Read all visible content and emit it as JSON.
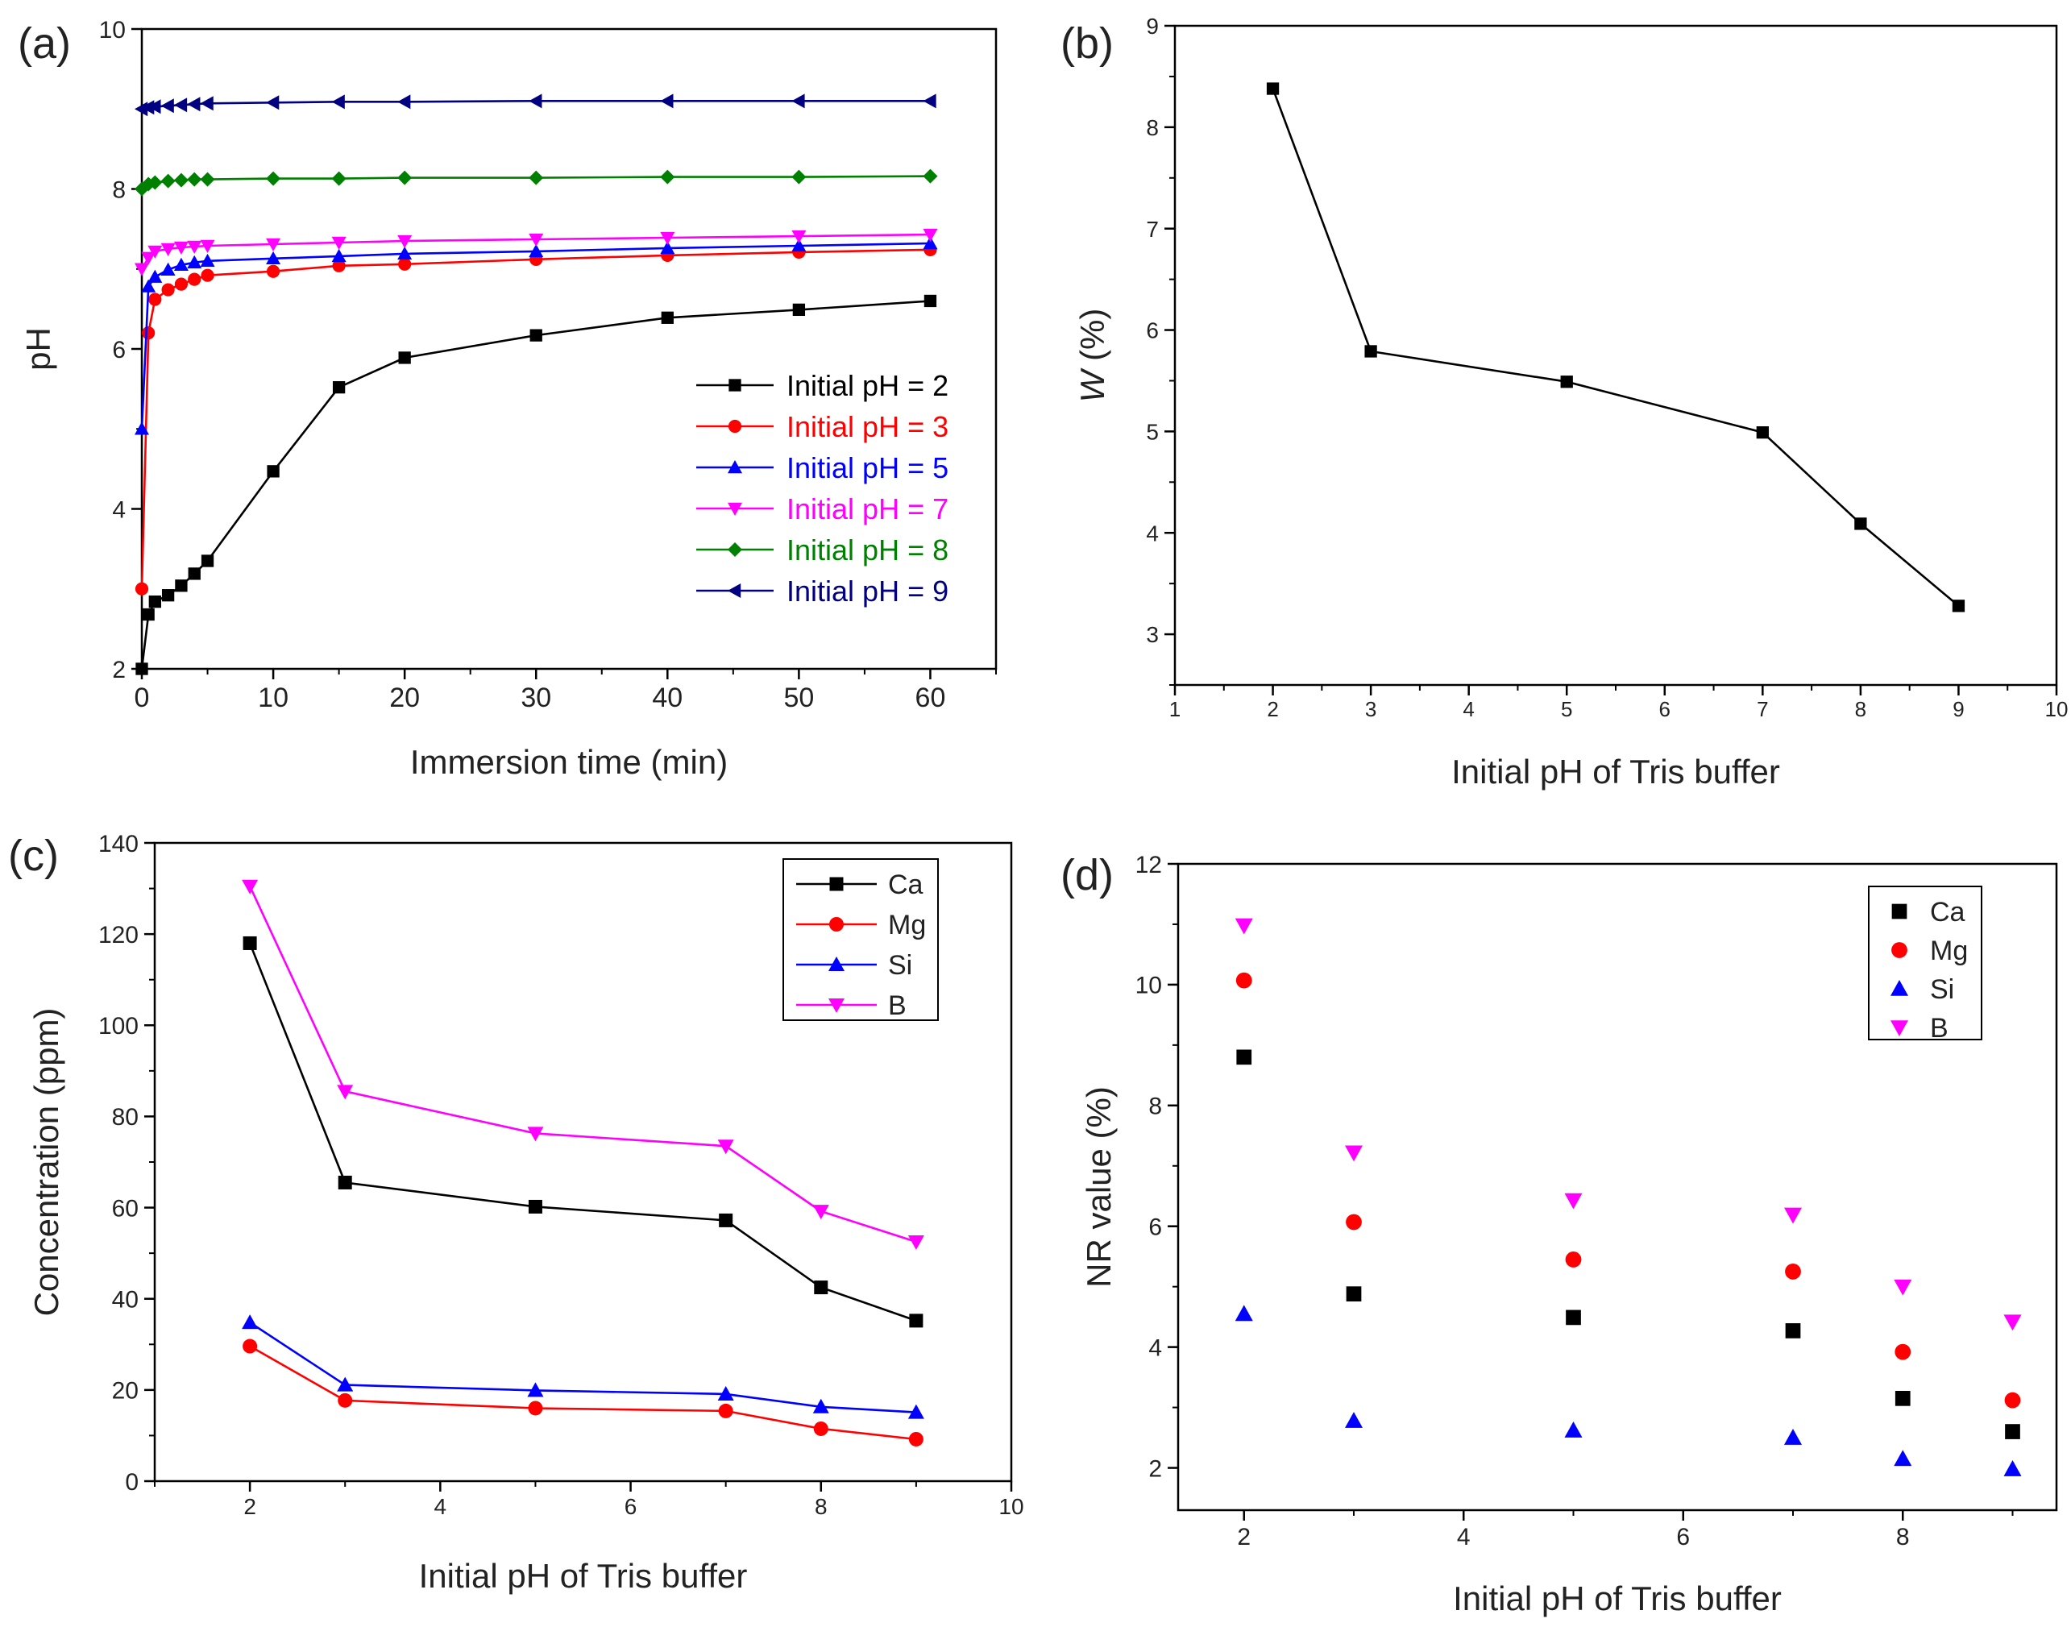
{
  "chart_data": [
    {
      "type": "line",
      "panel_label": "(a)",
      "xlabel": "Immersion time (min)",
      "ylabel": "pH",
      "xlim": [
        0,
        65
      ],
      "ylim": [
        2,
        10
      ],
      "xticks": [
        0,
        10,
        20,
        30,
        40,
        50,
        60
      ],
      "yticks": [
        2,
        4,
        6,
        8,
        10
      ],
      "legend_position": "right-center",
      "series": [
        {
          "name": "Initial pH = 2",
          "color": "#000000",
          "marker": "square",
          "x": [
            0,
            0.5,
            1,
            2,
            3,
            4,
            5,
            10,
            15,
            20,
            30,
            40,
            50,
            60
          ],
          "y": [
            2.0,
            2.68,
            2.84,
            2.92,
            3.04,
            3.19,
            3.35,
            4.47,
            5.52,
            5.89,
            6.17,
            6.39,
            6.49,
            6.6
          ]
        },
        {
          "name": "Initial pH = 3",
          "color": "#ff0000",
          "marker": "circle",
          "x": [
            0,
            0.5,
            1,
            2,
            3,
            4,
            5,
            10,
            15,
            20,
            30,
            40,
            50,
            60
          ],
          "y": [
            3.0,
            6.2,
            6.62,
            6.74,
            6.81,
            6.87,
            6.92,
            6.97,
            7.04,
            7.06,
            7.12,
            7.17,
            7.21,
            7.24
          ]
        },
        {
          "name": "Initial pH = 5",
          "color": "#0000ff",
          "marker": "triangle-up",
          "x": [
            0,
            0.5,
            1,
            2,
            3,
            4,
            5,
            10,
            15,
            20,
            30,
            40,
            50,
            60
          ],
          "y": [
            5.0,
            6.78,
            6.9,
            6.99,
            7.05,
            7.08,
            7.1,
            7.13,
            7.16,
            7.19,
            7.22,
            7.26,
            7.29,
            7.32
          ]
        },
        {
          "name": "Initial pH = 7",
          "color": "#ff00ff",
          "marker": "triangle-down",
          "x": [
            0,
            0.5,
            1,
            2,
            3,
            4,
            5,
            10,
            15,
            20,
            30,
            40,
            50,
            60
          ],
          "y": [
            7.0,
            7.14,
            7.22,
            7.25,
            7.27,
            7.28,
            7.29,
            7.31,
            7.33,
            7.35,
            7.37,
            7.39,
            7.41,
            7.43
          ]
        },
        {
          "name": "Initial pH = 8",
          "color": "#008000",
          "marker": "diamond",
          "x": [
            0,
            0.5,
            1,
            2,
            3,
            4,
            5,
            10,
            15,
            20,
            30,
            40,
            50,
            60
          ],
          "y": [
            8.0,
            8.06,
            8.08,
            8.1,
            8.11,
            8.12,
            8.12,
            8.13,
            8.13,
            8.14,
            8.14,
            8.15,
            8.15,
            8.16
          ]
        },
        {
          "name": "Initial pH = 9",
          "color": "#000080",
          "marker": "triangle-left",
          "x": [
            0,
            0.5,
            1,
            2,
            3,
            4,
            5,
            10,
            15,
            20,
            30,
            40,
            50,
            60
          ],
          "y": [
            9.0,
            9.02,
            9.03,
            9.04,
            9.05,
            9.06,
            9.07,
            9.08,
            9.09,
            9.09,
            9.1,
            9.1,
            9.1,
            9.1
          ]
        }
      ]
    },
    {
      "type": "line",
      "panel_label": "(b)",
      "xlabel": "Initial pH of Tris buffer",
      "ylabel_italic": "W",
      "ylabel_rest": " (%)",
      "xlim": [
        1,
        10
      ],
      "ylim": [
        2.5,
        9
      ],
      "xticks": [
        1,
        2,
        3,
        4,
        5,
        6,
        7,
        8,
        9,
        10
      ],
      "yticks": [
        3,
        4,
        5,
        6,
        7,
        8,
        9
      ],
      "series": [
        {
          "name": "W",
          "color": "#000000",
          "marker": "square",
          "x": [
            2,
            3,
            5,
            7,
            8,
            9
          ],
          "y": [
            8.38,
            5.79,
            5.49,
            4.99,
            4.09,
            3.28
          ]
        }
      ]
    },
    {
      "type": "line",
      "panel_label": "(c)",
      "xlabel": "Initial pH of Tris buffer",
      "ylabel": "Concentration (ppm)",
      "xlim": [
        1,
        10
      ],
      "ylim": [
        0,
        140
      ],
      "xticks": [
        2,
        4,
        6,
        8,
        10
      ],
      "yticks": [
        0,
        20,
        40,
        60,
        80,
        100,
        120,
        140
      ],
      "legend_position": "top-right",
      "categories": [
        2,
        3,
        5,
        7,
        8,
        9
      ],
      "series": [
        {
          "name": "Ca",
          "color": "#000000",
          "marker": "square",
          "values": [
            118.0,
            65.5,
            60.2,
            57.2,
            42.5,
            35.2
          ]
        },
        {
          "name": "Mg",
          "color": "#ff0000",
          "marker": "circle",
          "values": [
            29.6,
            17.7,
            16.0,
            15.4,
            11.5,
            9.2
          ]
        },
        {
          "name": "Si",
          "color": "#0000ff",
          "marker": "triangle-up",
          "values": [
            34.8,
            21.1,
            19.9,
            19.1,
            16.3,
            15.1
          ]
        },
        {
          "name": "B",
          "color": "#ff00ff",
          "marker": "triangle-down",
          "values": [
            130.5,
            85.5,
            76.3,
            73.5,
            59.2,
            52.5
          ]
        }
      ]
    },
    {
      "type": "scatter",
      "panel_label": "(d)",
      "xlabel": "Initial pH of Tris buffer",
      "ylabel": "NR value (%)",
      "xlim": [
        1.4,
        9.4
      ],
      "ylim": [
        1.3,
        12
      ],
      "xticks": [
        2,
        4,
        6,
        8
      ],
      "yticks": [
        2,
        4,
        6,
        8,
        10,
        12
      ],
      "legend_position": "top-right",
      "categories": [
        2,
        3,
        5,
        7,
        8,
        9
      ],
      "series": [
        {
          "name": "Ca",
          "color": "#000000",
          "marker": "square",
          "values": [
            8.8,
            4.88,
            4.49,
            4.27,
            3.15,
            2.6
          ]
        },
        {
          "name": "Mg",
          "color": "#ff0000",
          "marker": "circle",
          "values": [
            10.07,
            6.07,
            5.45,
            5.25,
            3.92,
            3.12
          ]
        },
        {
          "name": "Si",
          "color": "#0000ff",
          "marker": "triangle-up",
          "values": [
            4.55,
            2.78,
            2.62,
            2.5,
            2.15,
            1.98
          ]
        },
        {
          "name": "B",
          "color": "#ff00ff",
          "marker": "triangle-down",
          "values": [
            10.98,
            7.22,
            6.43,
            6.19,
            5.0,
            4.42
          ]
        }
      ]
    }
  ]
}
